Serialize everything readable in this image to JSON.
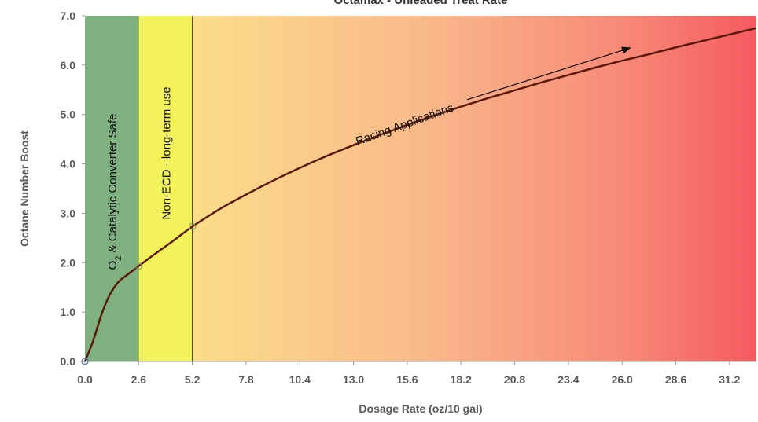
{
  "chart_data": {
    "type": "line",
    "title": "Octamax - Unleaded Treat Rate",
    "xlabel": "Dosage Rate (oz/10 gal)",
    "ylabel": "Octane Number Boost",
    "xlim": [
      0,
      32.5
    ],
    "ylim": [
      0,
      7.0
    ],
    "x_ticks": [
      "0.0",
      "2.6",
      "5.2",
      "7.8",
      "10.4",
      "13.0",
      "15.6",
      "18.2",
      "20.8",
      "23.4",
      "26.0",
      "28.6",
      "31.2"
    ],
    "y_ticks": [
      "0.0",
      "1.0",
      "2.0",
      "3.0",
      "4.0",
      "5.0",
      "6.0",
      "7.0"
    ],
    "series": [
      {
        "color": "#5a1a0a",
        "x": [
          0.0,
          0.4,
          0.8,
          1.2,
          1.6,
          2.0,
          2.6,
          3.3,
          4.2,
          5.2,
          6.5,
          7.8,
          9.1,
          10.4,
          11.7,
          13.0,
          14.3,
          15.6,
          16.9,
          18.2,
          19.5,
          20.8,
          22.1,
          23.4,
          24.7,
          26.0,
          27.3,
          28.6,
          29.9,
          31.2,
          32.5
        ],
        "y": [
          0.0,
          0.42,
          0.95,
          1.35,
          1.6,
          1.74,
          1.93,
          2.15,
          2.42,
          2.73,
          3.08,
          3.38,
          3.66,
          3.92,
          4.16,
          4.38,
          4.59,
          4.79,
          4.98,
          5.16,
          5.33,
          5.49,
          5.65,
          5.8,
          5.95,
          6.09,
          6.22,
          6.36,
          6.49,
          6.62,
          6.75
        ]
      }
    ],
    "markers": [
      {
        "x": 0.0,
        "y": 0.0
      },
      {
        "x": 2.6,
        "y": 1.93
      },
      {
        "x": 5.2,
        "y": 2.73
      }
    ],
    "zones": [
      {
        "label_main": "O",
        "label_sub": "2",
        "label_rest": " & Catalytic Converter Safe",
        "x_from": 0.0,
        "x_to": 2.6,
        "color": "#7fb07f"
      },
      {
        "label_main": "Non-ECD -  long-term use",
        "x_from": 2.6,
        "x_to": 5.2,
        "color": "#f2f25a"
      }
    ],
    "background_gradient": [
      "#f7f27a",
      "#fbd98a",
      "#f9b98a",
      "#f78a78",
      "#f55a60"
    ],
    "annotation": {
      "text": "Racing Applications",
      "arrow_from": [
        18.5,
        5.3
      ],
      "arrow_to": [
        26.4,
        6.35
      ]
    },
    "grid": false,
    "legend": "none"
  }
}
